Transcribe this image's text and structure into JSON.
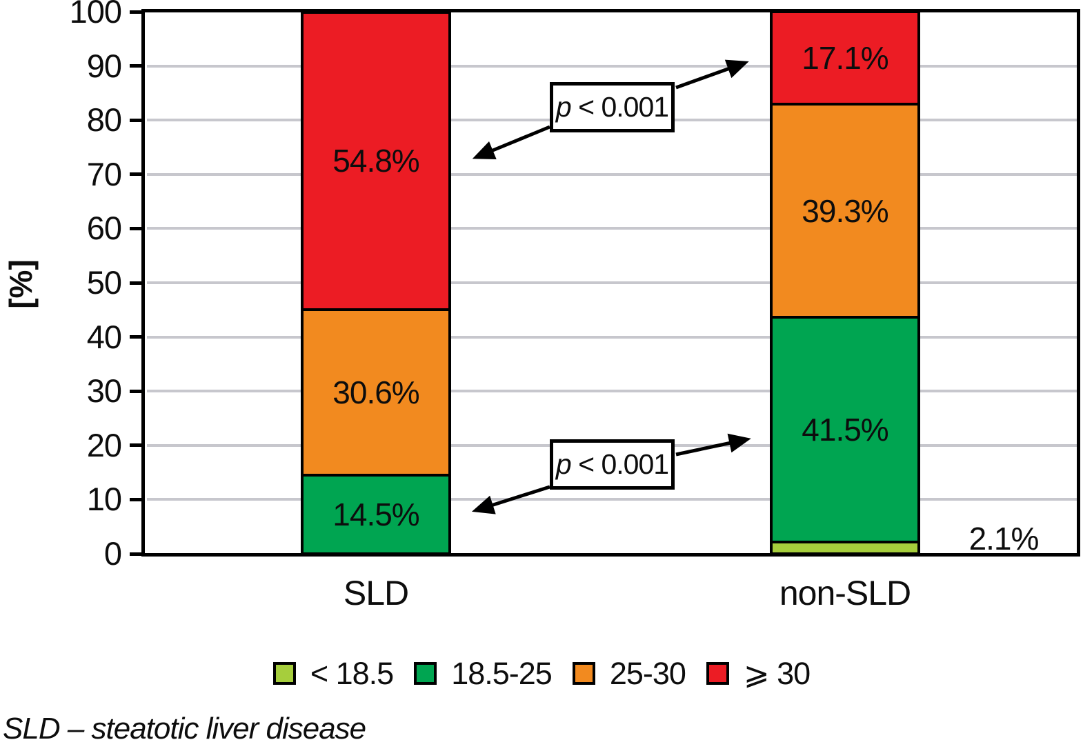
{
  "figure": {
    "ylabel": "[%]",
    "footnote": "SLD – steatotic liver disease"
  },
  "chart_data": {
    "type": "bar",
    "stacked": true,
    "ylabel": "[%]",
    "ylim": [
      0,
      100
    ],
    "yticks": [
      0,
      10,
      20,
      30,
      40,
      50,
      60,
      70,
      80,
      90,
      100
    ],
    "grid": true,
    "grid_color": "#c7c7cd",
    "legend_position": "bottom",
    "categories": [
      "SLD",
      "non-SLD"
    ],
    "series": [
      {
        "name": "< 18.5",
        "color": "#a6ce3c",
        "values": [
          0,
          2.1
        ],
        "labels": [
          "",
          "2.1%"
        ]
      },
      {
        "name": "18.5-25",
        "color": "#00a551",
        "values": [
          14.5,
          41.5
        ],
        "labels": [
          "14.5%",
          "41.5%"
        ]
      },
      {
        "name": "25-30",
        "color": "#f28a1f",
        "values": [
          30.6,
          39.3
        ],
        "labels": [
          "30.6%",
          "39.3%"
        ]
      },
      {
        "name": "⩾ 30",
        "color": "#ec1c24",
        "values": [
          54.8,
          17.1
        ],
        "labels": [
          "54.8%",
          "17.1%"
        ]
      }
    ],
    "annotations": [
      {
        "text_italic": "p",
        "text": " < 0.001"
      },
      {
        "text_italic": "p",
        "text": " < 0.001"
      }
    ]
  }
}
